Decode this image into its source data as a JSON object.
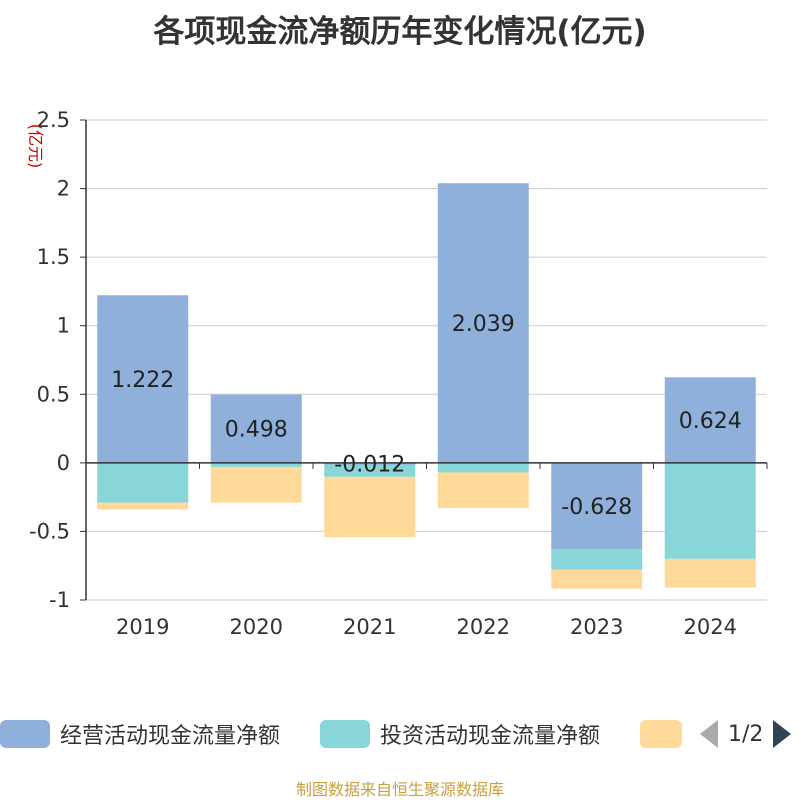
{
  "title": "各项现金流净额历年变化情况(亿元)",
  "source": "制图数据来自恒生聚源数据库",
  "legend": {
    "items": [
      {
        "label": "经营活动现金流量净额",
        "color": "#8eb0da"
      },
      {
        "label": "投资活动现金流量净额",
        "color": "#88d6d8"
      },
      {
        "label": "",
        "color": "#ffd999"
      }
    ],
    "page": "1/2"
  },
  "chart_data": {
    "type": "bar",
    "stacked": true,
    "categories": [
      "2019",
      "2020",
      "2021",
      "2022",
      "2023",
      "2024"
    ],
    "ylabel": "(亿元)",
    "ylim": [
      -1,
      2.5
    ],
    "yticks": [
      "2.5",
      "2",
      "1.5",
      "1",
      "0.5",
      "0",
      "-0.5",
      "-1"
    ],
    "grid": true,
    "series": [
      {
        "name": "经营活动现金流量净额",
        "color": "#8eb0da",
        "values": [
          1.222,
          0.498,
          -0.012,
          2.039,
          -0.628,
          0.624
        ],
        "labels": [
          "1.222",
          "0.498",
          "-0.012",
          "2.039",
          "-0.628",
          "0.624"
        ]
      },
      {
        "name": "投资活动现金流量净额",
        "color": "#88d6d8",
        "values": [
          -0.29,
          -0.03,
          -0.09,
          -0.07,
          -0.15,
          -0.7
        ]
      },
      {
        "color": "#ffd999",
        "values": [
          -0.05,
          -0.26,
          -0.44,
          -0.26,
          -0.14,
          -0.21
        ]
      }
    ]
  }
}
